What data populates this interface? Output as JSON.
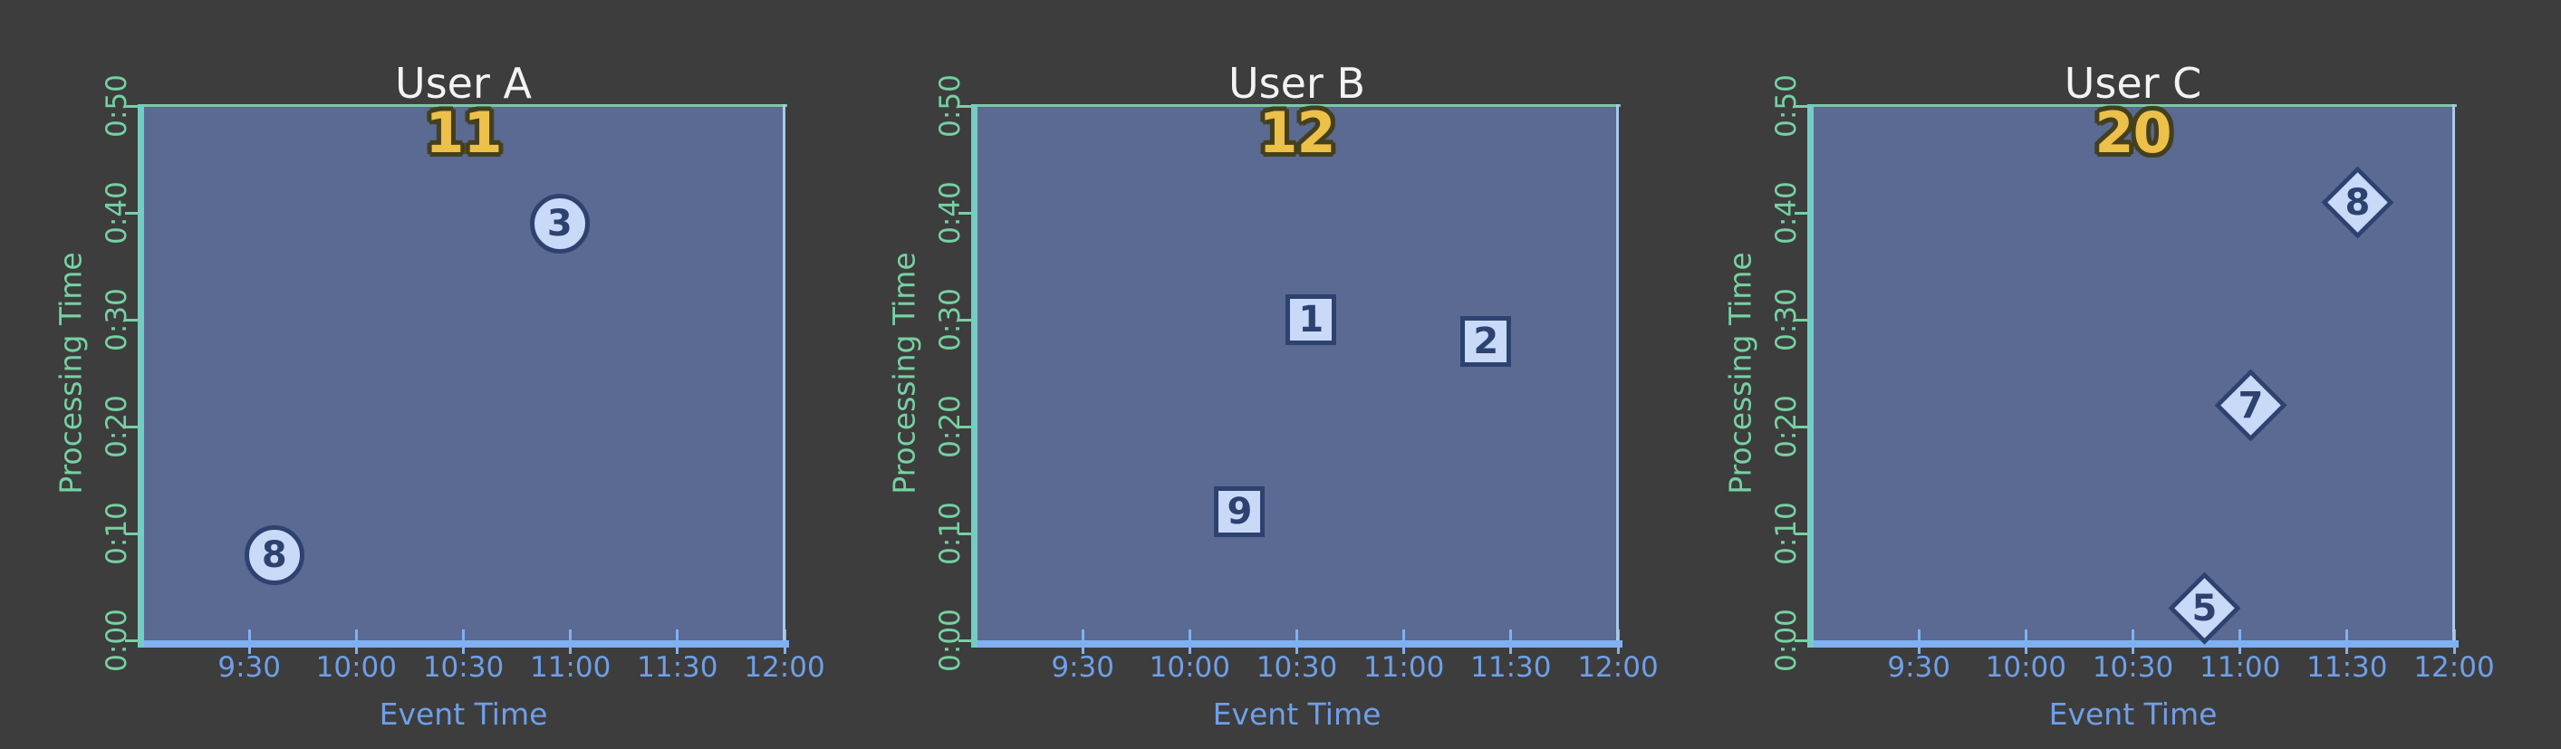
{
  "app": {
    "background": "#3d3d3d"
  },
  "chart_data": {
    "type": "scatter",
    "layout_hint": "three side-by-side panels on dark background, identical axes",
    "xlabel": "Event Time",
    "ylabel": "Processing Time",
    "x_ticks": [
      "9:30",
      "10:00",
      "10:30",
      "11:00",
      "11:30",
      "12:00"
    ],
    "y_ticks": [
      "0:00",
      "0:10",
      "0:20",
      "0:30",
      "0:40",
      "0:50"
    ],
    "x_range": [
      "9:00",
      "12:00"
    ],
    "y_range": [
      "0:00",
      "0:50"
    ],
    "grid": "off",
    "panels": [
      {
        "title": "User A",
        "marker": "circle",
        "sum_label": "11",
        "points": [
          {
            "value": "3",
            "event_time": "10:57",
            "processing_time": "0:39"
          },
          {
            "value": "8",
            "event_time": "9:37",
            "processing_time": "0:08"
          }
        ]
      },
      {
        "title": "User B",
        "marker": "square",
        "sum_label": "12",
        "points": [
          {
            "value": "1",
            "event_time": "10:34",
            "processing_time": "0:30"
          },
          {
            "value": "2",
            "event_time": "11:23",
            "processing_time": "0:28"
          },
          {
            "value": "9",
            "event_time": "10:14",
            "processing_time": "0:12"
          }
        ]
      },
      {
        "title": "User C",
        "marker": "diamond",
        "sum_label": "20",
        "points": [
          {
            "value": "8",
            "event_time": "11:33",
            "processing_time": "0:41"
          },
          {
            "value": "7",
            "event_time": "11:03",
            "processing_time": "0:22"
          },
          {
            "value": "5",
            "event_time": "10:50",
            "processing_time": "0:03"
          }
        ]
      }
    ],
    "colors": {
      "background": "#3d3d3d",
      "plot_fill": "#5a6a92",
      "x_axis_spine": "#7fb1f2",
      "y_axis_spine": "#74ccc2",
      "top_spine": "#7cc9a2",
      "right_spine": "#a9c9ea",
      "x_text": "#6f9fe8",
      "y_text": "#76d1a2",
      "title_text": "#f3f3f3",
      "sum_text": "#edc04a",
      "sum_outline": "#44401f",
      "marker_fill": "#c9d9f8",
      "marker_stroke": "#2e4270"
    }
  }
}
